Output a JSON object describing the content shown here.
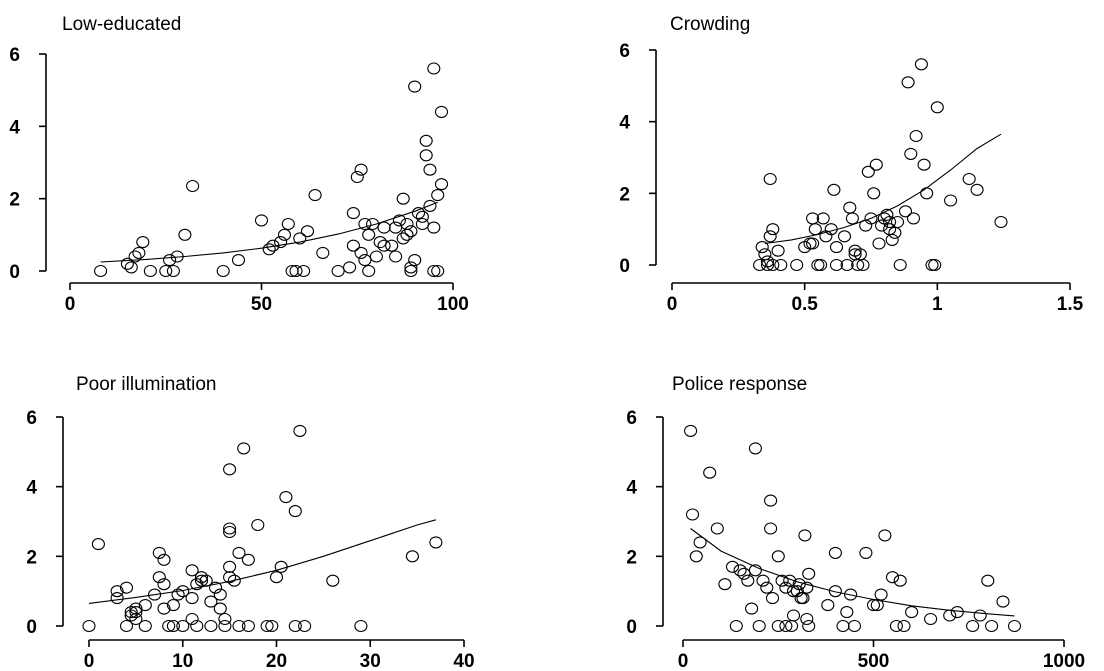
{
  "chart_data": [
    {
      "type": "scatter",
      "title": "Low-educated",
      "xlim": [
        0,
        100
      ],
      "ylim": [
        0,
        6
      ],
      "xticks": [
        "0",
        "50",
        "100"
      ],
      "yticks": [
        "0",
        "2",
        "4",
        "6"
      ],
      "grid": false,
      "points": [
        [
          8,
          0
        ],
        [
          15,
          0.2
        ],
        [
          16,
          0.1
        ],
        [
          17,
          0.4
        ],
        [
          18,
          0.5
        ],
        [
          19,
          0.8
        ],
        [
          21,
          0
        ],
        [
          25,
          0
        ],
        [
          26,
          0.3
        ],
        [
          27,
          0
        ],
        [
          28,
          0.4
        ],
        [
          30,
          1
        ],
        [
          32,
          2.35
        ],
        [
          40,
          0
        ],
        [
          44,
          0.3
        ],
        [
          50,
          1.4
        ],
        [
          52,
          0.6
        ],
        [
          53,
          0.7
        ],
        [
          55,
          0.8
        ],
        [
          56,
          1
        ],
        [
          57,
          1.3
        ],
        [
          58,
          0
        ],
        [
          59,
          0
        ],
        [
          60,
          0.9
        ],
        [
          61,
          0
        ],
        [
          62,
          1.1
        ],
        [
          64,
          2.1
        ],
        [
          66,
          0.5
        ],
        [
          70,
          0
        ],
        [
          73,
          0.1
        ],
        [
          74,
          0.7
        ],
        [
          74,
          1.6
        ],
        [
          75,
          2.6
        ],
        [
          76,
          0.5
        ],
        [
          76,
          2.8
        ],
        [
          77,
          1.3
        ],
        [
          77,
          0.3
        ],
        [
          78,
          1
        ],
        [
          78,
          0
        ],
        [
          79,
          1.3
        ],
        [
          80,
          0.4
        ],
        [
          81,
          0.8
        ],
        [
          82,
          0.7
        ],
        [
          82,
          1.2
        ],
        [
          84,
          0.7
        ],
        [
          85,
          0.4
        ],
        [
          85,
          1.2
        ],
        [
          86,
          1.4
        ],
        [
          87,
          2
        ],
        [
          87,
          0.9
        ],
        [
          88,
          1
        ],
        [
          88,
          1.3
        ],
        [
          89,
          1.1
        ],
        [
          89,
          0
        ],
        [
          89,
          0.1
        ],
        [
          90,
          0.3
        ],
        [
          91,
          1.6
        ],
        [
          92,
          1.3
        ],
        [
          92,
          1.5
        ],
        [
          93,
          3.2
        ],
        [
          93,
          3.6
        ],
        [
          94,
          1.8
        ],
        [
          94,
          2.8
        ],
        [
          95,
          1.2
        ],
        [
          95,
          0
        ],
        [
          96,
          0
        ],
        [
          96,
          2.1
        ],
        [
          97,
          2.4
        ],
        [
          90,
          5.1
        ],
        [
          95,
          5.6
        ],
        [
          97,
          4.4
        ]
      ],
      "fit": [
        [
          8,
          0.25
        ],
        [
          20,
          0.32
        ],
        [
          30,
          0.4
        ],
        [
          40,
          0.5
        ],
        [
          50,
          0.63
        ],
        [
          60,
          0.8
        ],
        [
          70,
          1.02
        ],
        [
          80,
          1.3
        ],
        [
          90,
          1.65
        ],
        [
          96,
          1.9
        ]
      ]
    },
    {
      "type": "scatter",
      "title": "Crowding",
      "xlim": [
        0,
        1.5
      ],
      "ylim": [
        0,
        6
      ],
      "xticks": [
        "0",
        "0.5",
        "1",
        "1.5"
      ],
      "yticks": [
        "0",
        "2",
        "4",
        "6"
      ],
      "grid": false,
      "points": [
        [
          0.33,
          0
        ],
        [
          0.34,
          0.5
        ],
        [
          0.35,
          0.3
        ],
        [
          0.36,
          0.1
        ],
        [
          0.36,
          0
        ],
        [
          0.37,
          0.8
        ],
        [
          0.37,
          2.4
        ],
        [
          0.38,
          1
        ],
        [
          0.38,
          0
        ],
        [
          0.4,
          0.4
        ],
        [
          0.41,
          0
        ],
        [
          0.47,
          0
        ],
        [
          0.5,
          0.5
        ],
        [
          0.52,
          0.6
        ],
        [
          0.53,
          0.6
        ],
        [
          0.53,
          1.3
        ],
        [
          0.54,
          1
        ],
        [
          0.55,
          0
        ],
        [
          0.56,
          0
        ],
        [
          0.57,
          1.3
        ],
        [
          0.58,
          0.8
        ],
        [
          0.6,
          1
        ],
        [
          0.61,
          2.1
        ],
        [
          0.62,
          0.5
        ],
        [
          0.62,
          0
        ],
        [
          0.65,
          0.8
        ],
        [
          0.66,
          0
        ],
        [
          0.67,
          1.6
        ],
        [
          0.68,
          1.3
        ],
        [
          0.69,
          0.4
        ],
        [
          0.69,
          0.3
        ],
        [
          0.7,
          0
        ],
        [
          0.71,
          0.3
        ],
        [
          0.72,
          0
        ],
        [
          0.73,
          1.1
        ],
        [
          0.74,
          2.6
        ],
        [
          0.75,
          1.3
        ],
        [
          0.76,
          2
        ],
        [
          0.77,
          2.8
        ],
        [
          0.78,
          0.6
        ],
        [
          0.79,
          1.1
        ],
        [
          0.8,
          1.3
        ],
        [
          0.81,
          1.4
        ],
        [
          0.82,
          1
        ],
        [
          0.82,
          1.2
        ],
        [
          0.83,
          0.7
        ],
        [
          0.84,
          0.9
        ],
        [
          0.85,
          1.2
        ],
        [
          0.86,
          0
        ],
        [
          0.88,
          1.5
        ],
        [
          0.89,
          5.1
        ],
        [
          0.9,
          3.1
        ],
        [
          0.91,
          1.3
        ],
        [
          0.92,
          3.6
        ],
        [
          0.94,
          5.6
        ],
        [
          0.95,
          2.8
        ],
        [
          0.96,
          2
        ],
        [
          0.98,
          0
        ],
        [
          0.99,
          0
        ],
        [
          1,
          4.4
        ],
        [
          1.05,
          1.8
        ],
        [
          1.12,
          2.4
        ],
        [
          1.15,
          2.1
        ],
        [
          1.24,
          1.2
        ]
      ],
      "fit": [
        [
          0.35,
          0.6
        ],
        [
          0.45,
          0.7
        ],
        [
          0.55,
          0.85
        ],
        [
          0.65,
          1.05
        ],
        [
          0.75,
          1.3
        ],
        [
          0.85,
          1.65
        ],
        [
          0.95,
          2.1
        ],
        [
          1.05,
          2.65
        ],
        [
          1.15,
          3.25
        ],
        [
          1.24,
          3.65
        ]
      ]
    },
    {
      "type": "scatter",
      "title": "Poor illumination",
      "xlim": [
        0,
        40
      ],
      "ylim": [
        0,
        6
      ],
      "xticks": [
        "0",
        "10",
        "20",
        "30",
        "40"
      ],
      "yticks": [
        "0",
        "2",
        "4",
        "6"
      ],
      "grid": false,
      "points": [
        [
          0,
          0
        ],
        [
          1,
          2.35
        ],
        [
          3,
          1
        ],
        [
          3,
          0.8
        ],
        [
          4,
          1.1
        ],
        [
          4,
          0
        ],
        [
          4.5,
          0.4
        ],
        [
          4.5,
          0.3
        ],
        [
          5,
          0.2
        ],
        [
          5,
          0.5
        ],
        [
          5,
          0.4
        ],
        [
          6,
          0.6
        ],
        [
          6,
          0
        ],
        [
          7,
          0.9
        ],
        [
          7.5,
          1.4
        ],
        [
          7.5,
          2.1
        ],
        [
          8,
          1.9
        ],
        [
          8,
          1.2
        ],
        [
          8,
          0.5
        ],
        [
          8.5,
          0
        ],
        [
          9,
          0.6
        ],
        [
          9,
          0
        ],
        [
          9.5,
          0.9
        ],
        [
          10,
          1
        ],
        [
          10,
          0
        ],
        [
          11,
          1.6
        ],
        [
          11,
          0.8
        ],
        [
          11,
          0.2
        ],
        [
          11.5,
          1.2
        ],
        [
          11.5,
          0
        ],
        [
          12,
          1.3
        ],
        [
          12,
          1.4
        ],
        [
          12.5,
          1.3
        ],
        [
          13,
          0
        ],
        [
          13,
          0.7
        ],
        [
          13.5,
          1.1
        ],
        [
          14,
          0.5
        ],
        [
          14,
          0.9
        ],
        [
          14.5,
          0.2
        ],
        [
          14.5,
          0
        ],
        [
          15,
          1.4
        ],
        [
          15,
          1.7
        ],
        [
          15,
          2.7
        ],
        [
          15,
          2.8
        ],
        [
          15,
          4.5
        ],
        [
          15.5,
          1.3
        ],
        [
          16,
          2.1
        ],
        [
          16,
          0
        ],
        [
          16.5,
          5.1
        ],
        [
          17,
          1.9
        ],
        [
          17,
          0
        ],
        [
          18,
          2.9
        ],
        [
          19,
          0
        ],
        [
          19.5,
          0
        ],
        [
          20,
          1.4
        ],
        [
          20.5,
          1.7
        ],
        [
          21,
          3.7
        ],
        [
          22,
          0
        ],
        [
          22,
          3.3
        ],
        [
          22.5,
          5.6
        ],
        [
          23,
          0
        ],
        [
          26,
          1.3
        ],
        [
          29,
          0
        ],
        [
          34.5,
          2
        ],
        [
          37,
          2.4
        ]
      ],
      "fit": [
        [
          0,
          0.65
        ],
        [
          5,
          0.82
        ],
        [
          10,
          1.02
        ],
        [
          15,
          1.28
        ],
        [
          20,
          1.6
        ],
        [
          25,
          2
        ],
        [
          30,
          2.45
        ],
        [
          35,
          2.9
        ],
        [
          37,
          3.05
        ]
      ]
    },
    {
      "type": "scatter",
      "title": "Police response",
      "xlim": [
        0,
        1000
      ],
      "ylim": [
        0,
        6
      ],
      "xticks": [
        "0",
        "500",
        "1000"
      ],
      "yticks": [
        "0",
        "2",
        "4",
        "6"
      ],
      "grid": false,
      "points": [
        [
          20,
          5.6
        ],
        [
          25,
          3.2
        ],
        [
          35,
          2
        ],
        [
          45,
          2.4
        ],
        [
          70,
          4.4
        ],
        [
          90,
          2.8
        ],
        [
          110,
          1.2
        ],
        [
          130,
          1.7
        ],
        [
          140,
          0
        ],
        [
          150,
          1.6
        ],
        [
          160,
          1.5
        ],
        [
          170,
          1.3
        ],
        [
          180,
          0.5
        ],
        [
          190,
          5.1
        ],
        [
          190,
          1.6
        ],
        [
          200,
          0
        ],
        [
          210,
          1.3
        ],
        [
          220,
          1.1
        ],
        [
          230,
          2.8
        ],
        [
          230,
          3.6
        ],
        [
          235,
          0.8
        ],
        [
          250,
          2
        ],
        [
          250,
          0
        ],
        [
          260,
          1.3
        ],
        [
          270,
          1.1
        ],
        [
          270,
          0
        ],
        [
          280,
          1.3
        ],
        [
          285,
          0
        ],
        [
          290,
          1
        ],
        [
          290,
          0.3
        ],
        [
          300,
          1
        ],
        [
          305,
          1.2
        ],
        [
          310,
          0.8
        ],
        [
          315,
          0.8
        ],
        [
          320,
          2.6
        ],
        [
          325,
          0.2
        ],
        [
          325,
          1.1
        ],
        [
          330,
          1.5
        ],
        [
          330,
          0
        ],
        [
          380,
          0.6
        ],
        [
          400,
          1
        ],
        [
          400,
          2.1
        ],
        [
          420,
          0
        ],
        [
          430,
          0.4
        ],
        [
          440,
          0.9
        ],
        [
          450,
          0
        ],
        [
          480,
          2.1
        ],
        [
          500,
          0.6
        ],
        [
          510,
          0.6
        ],
        [
          520,
          0.9
        ],
        [
          530,
          2.6
        ],
        [
          550,
          1.4
        ],
        [
          560,
          0
        ],
        [
          570,
          1.3
        ],
        [
          580,
          0
        ],
        [
          600,
          0.4
        ],
        [
          650,
          0.2
        ],
        [
          700,
          0.3
        ],
        [
          720,
          0.4
        ],
        [
          760,
          0
        ],
        [
          780,
          0.3
        ],
        [
          800,
          1.3
        ],
        [
          810,
          0
        ],
        [
          840,
          0.7
        ],
        [
          870,
          0
        ]
      ],
      "fit": [
        [
          20,
          2.8
        ],
        [
          100,
          2.15
        ],
        [
          200,
          1.65
        ],
        [
          300,
          1.27
        ],
        [
          400,
          0.98
        ],
        [
          500,
          0.76
        ],
        [
          600,
          0.58
        ],
        [
          700,
          0.45
        ],
        [
          800,
          0.35
        ],
        [
          870,
          0.29
        ]
      ]
    }
  ]
}
